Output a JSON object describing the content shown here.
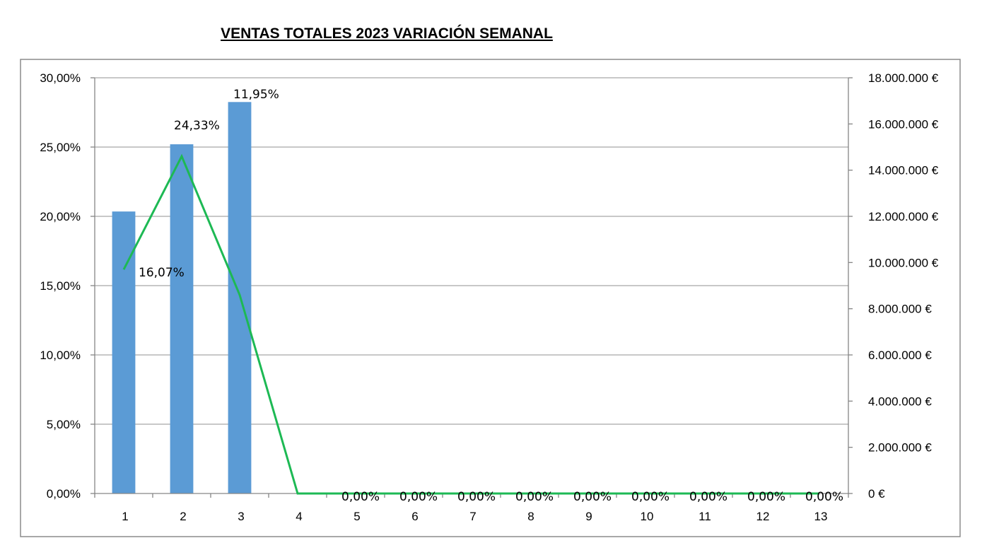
{
  "chart_data": {
    "type": "bar+line",
    "title": "VENTAS TOTALES 2023 VARIACIÓN SEMANAL",
    "categories": [
      "1",
      "2",
      "3",
      "4",
      "5",
      "6",
      "7",
      "8",
      "9",
      "10",
      "11",
      "12",
      "13"
    ],
    "y_left": {
      "ylim": [
        0,
        0.3
      ],
      "tick_values": [
        0,
        0.05,
        0.1,
        0.15,
        0.2,
        0.25,
        0.3
      ],
      "tick_labels": [
        "0,00%",
        "5,00%",
        "10,00%",
        "15,00%",
        "20,00%",
        "25,00%",
        "30,00%"
      ]
    },
    "y_right": {
      "ylim": [
        0,
        18000000
      ],
      "tick_values": [
        0,
        2000000,
        4000000,
        6000000,
        8000000,
        10000000,
        12000000,
        14000000,
        16000000,
        18000000
      ],
      "tick_labels": [
        "0 €",
        "2.000.000 €",
        "4.000.000 €",
        "6.000.000 €",
        "8.000.000 €",
        "10.000.000 €",
        "12.000.000 €",
        "14.000.000 €",
        "16.000.000 €",
        "18.000.000 €"
      ]
    },
    "bars": {
      "axis": "left",
      "color": "#5b9bd5",
      "values": [
        0.2035,
        0.252,
        0.2825,
        null,
        null,
        null,
        null,
        null,
        null,
        null,
        null,
        null,
        null
      ]
    },
    "line": {
      "axis": "right",
      "color": "#1db954",
      "values": [
        9700000,
        14600000,
        8600000,
        0,
        0,
        0,
        0,
        0,
        0,
        0,
        0,
        0,
        0
      ],
      "labels": [
        "16,07%",
        "24,33%",
        "11,95%",
        "",
        "0,00%",
        "0,00%",
        "0,00%",
        "0,00%",
        "0,00%",
        "0,00%",
        "0,00%",
        "0,00%",
        "0,00%"
      ]
    },
    "grid": true,
    "gridline_color": "#a6a6a6",
    "legend": "none"
  }
}
